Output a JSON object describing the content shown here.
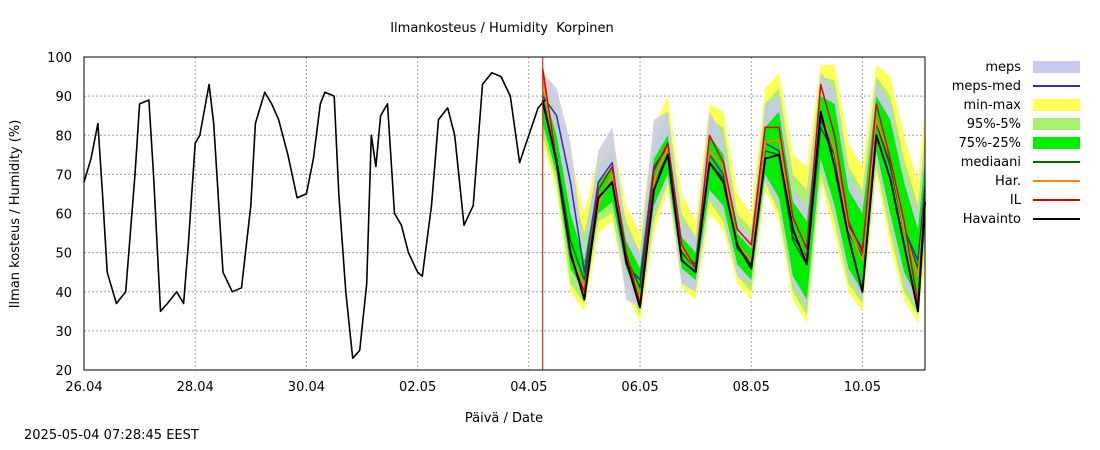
{
  "chart_data": {
    "type": "line",
    "title": "Ilmankosteus / Humidity  Korpinen",
    "xlabel": "Päivä / Date",
    "ylabel": "Ilman kosteus / Humidity (%)",
    "ylim": [
      20,
      100
    ],
    "yticks": [
      20,
      30,
      40,
      50,
      60,
      70,
      80,
      90,
      100
    ],
    "xlim": [
      "2025-04-26T00:00",
      "2025-05-11T03:00"
    ],
    "xticks": [
      "26.04",
      "28.04",
      "30.04",
      "02.05",
      "04.05",
      "06.05",
      "08.05",
      "10.05"
    ],
    "grid": true,
    "legend_position": "right",
    "analysis_time": "2025-05-04T06:00",
    "legend": [
      {
        "label": "meps",
        "kind": "band",
        "color": "#c8c8f0"
      },
      {
        "label": "meps-med",
        "kind": "line",
        "color": "#3030c0"
      },
      {
        "label": "min-max",
        "kind": "band",
        "color": "#ffff55"
      },
      {
        "label": "95%-5%",
        "kind": "band",
        "color": "#a8f070"
      },
      {
        "label": "75%-25%",
        "kind": "band",
        "color": "#00ee00"
      },
      {
        "label": "mediaani",
        "kind": "line",
        "color": "#006600"
      },
      {
        "label": "Har.",
        "kind": "line",
        "color": "#ff8800"
      },
      {
        "label": "IL",
        "kind": "line",
        "color": "#e00000"
      },
      {
        "label": "Havainto",
        "kind": "line",
        "color": "#000000"
      }
    ],
    "observed": {
      "name": "Havainto",
      "x": [
        "2025-04-26T00:00",
        "2025-04-26T03:00",
        "2025-04-26T06:00",
        "2025-04-26T08:00",
        "2025-04-26T10:00",
        "2025-04-26T14:00",
        "2025-04-26T18:00",
        "2025-04-26T22:00",
        "2025-04-27T00:00",
        "2025-04-27T04:00",
        "2025-04-27T06:00",
        "2025-04-27T09:00",
        "2025-04-27T12:00",
        "2025-04-27T16:00",
        "2025-04-27T19:00",
        "2025-04-27T21:00",
        "2025-04-28T00:00",
        "2025-04-28T02:00",
        "2025-04-28T06:00",
        "2025-04-28T08:00",
        "2025-04-28T12:00",
        "2025-04-28T16:00",
        "2025-04-28T20:00",
        "2025-04-29T00:00",
        "2025-04-29T02:00",
        "2025-04-29T06:00",
        "2025-04-29T09:00",
        "2025-04-29T12:00",
        "2025-04-29T16:00",
        "2025-04-29T20:00",
        "2025-04-30T00:00",
        "2025-04-30T03:00",
        "2025-04-30T06:00",
        "2025-04-30T08:00",
        "2025-04-30T12:00",
        "2025-04-30T14:00",
        "2025-04-30T17:00",
        "2025-04-30T20:00",
        "2025-04-30T23:00",
        "2025-05-01T02:00",
        "2025-05-01T04:00",
        "2025-05-01T06:00",
        "2025-05-01T08:00",
        "2025-05-01T11:00",
        "2025-05-01T14:00",
        "2025-05-01T17:00",
        "2025-05-01T20:00",
        "2025-05-02T00:00",
        "2025-05-02T02:00",
        "2025-05-02T06:00",
        "2025-05-02T09:00",
        "2025-05-02T13:00",
        "2025-05-02T16:00",
        "2025-05-02T20:00",
        "2025-05-03T00:00",
        "2025-05-03T04:00",
        "2025-05-03T08:00",
        "2025-05-03T12:00",
        "2025-05-03T16:00",
        "2025-05-03T20:00",
        "2025-05-04T00:00",
        "2025-05-04T04:00",
        "2025-05-04T07:00"
      ],
      "values": [
        68,
        74,
        83,
        65,
        45,
        37,
        40,
        70,
        88,
        89,
        70,
        35,
        37,
        40,
        37,
        52,
        78,
        80,
        93,
        83,
        45,
        40,
        41,
        62,
        83,
        91,
        88,
        84,
        75,
        64,
        65,
        74,
        88,
        91,
        90,
        65,
        40,
        23,
        25,
        42,
        80,
        72,
        85,
        88,
        60,
        57,
        50,
        45,
        44,
        62,
        84,
        87,
        80,
        57,
        62,
        93,
        96,
        95,
        90,
        73,
        80,
        87,
        89
      ]
    },
    "forecast_x": [
      "2025-05-04T06:00",
      "2025-05-04T12:00",
      "2025-05-04T18:00",
      "2025-05-05T00:00",
      "2025-05-05T06:00",
      "2025-05-05T12:00",
      "2025-05-05T18:00",
      "2025-05-06T00:00",
      "2025-05-06T06:00",
      "2025-05-06T12:00",
      "2025-05-06T18:00",
      "2025-05-07T00:00",
      "2025-05-07T06:00",
      "2025-05-07T12:00",
      "2025-05-07T18:00",
      "2025-05-08T00:00",
      "2025-05-08T06:00",
      "2025-05-08T12:00",
      "2025-05-08T18:00",
      "2025-05-09T00:00",
      "2025-05-09T06:00",
      "2025-05-09T12:00",
      "2025-05-09T18:00",
      "2025-05-10T00:00",
      "2025-05-10T06:00",
      "2025-05-10T12:00",
      "2025-05-10T18:00",
      "2025-05-11T00:00",
      "2025-05-11T03:00"
    ],
    "series": [
      {
        "name": "min-max",
        "kind": "band",
        "low": [
          78,
          66,
          40,
          35,
          55,
          58,
          40,
          32,
          55,
          66,
          41,
          38,
          60,
          56,
          42,
          38,
          66,
          58,
          38,
          32,
          68,
          55,
          40,
          35,
          70,
          52,
          38,
          32,
          48
        ],
        "high": [
          97,
          90,
          75,
          60,
          75,
          80,
          62,
          55,
          82,
          90,
          65,
          58,
          88,
          86,
          65,
          60,
          92,
          96,
          75,
          72,
          98,
          98,
          78,
          72,
          98,
          95,
          80,
          68,
          86
        ]
      },
      {
        "name": "95%-5%",
        "kind": "band",
        "low": [
          80,
          68,
          42,
          37,
          58,
          60,
          42,
          34,
          58,
          68,
          43,
          40,
          63,
          58,
          44,
          40,
          68,
          60,
          40,
          34,
          70,
          58,
          42,
          37,
          72,
          55,
          40,
          34,
          52
        ],
        "high": [
          95,
          86,
          68,
          55,
          72,
          76,
          58,
          50,
          78,
          86,
          60,
          54,
          84,
          82,
          60,
          56,
          88,
          92,
          70,
          66,
          95,
          94,
          72,
          66,
          95,
          90,
          74,
          62,
          80
        ]
      },
      {
        "name": "75%-25%",
        "kind": "band",
        "low": [
          83,
          70,
          46,
          40,
          60,
          63,
          46,
          38,
          62,
          70,
          46,
          43,
          66,
          62,
          47,
          43,
          70,
          64,
          44,
          38,
          74,
          62,
          46,
          40,
          76,
          60,
          45,
          38,
          56
        ],
        "high": [
          92,
          80,
          60,
          48,
          68,
          72,
          53,
          46,
          74,
          80,
          54,
          50,
          80,
          75,
          55,
          51,
          82,
          86,
          63,
          58,
          90,
          88,
          66,
          60,
          90,
          84,
          68,
          56,
          74
        ]
      },
      {
        "name": "meps",
        "kind": "band",
        "low": [
          85,
          78,
          60,
          40,
          62,
          64,
          38,
          36,
          60,
          68,
          42,
          40,
          64,
          60,
          44,
          42,
          68,
          62,
          42,
          36,
          72,
          60,
          44,
          38,
          74,
          58,
          42,
          36,
          56
        ],
        "high": [
          96,
          92,
          78,
          50,
          76,
          82,
          56,
          50,
          84,
          86,
          58,
          54,
          86,
          80,
          58,
          54,
          88,
          90,
          66,
          62,
          96,
          92,
          70,
          64,
          94,
          88,
          70,
          60,
          78
        ]
      },
      {
        "name": "meps-med",
        "kind": "line",
        "values": [
          90,
          85,
          68,
          45,
          68,
          73,
          47,
          43,
          72,
          77,
          50,
          47,
          75,
          70,
          51,
          48,
          78,
          76,
          54,
          49,
          84,
          76,
          57,
          51,
          84,
          73,
          56,
          48,
          67
        ]
      },
      {
        "name": "mediaani",
        "kind": "line",
        "values": [
          88,
          74,
          53,
          43,
          64,
          68,
          49,
          41,
          68,
          75,
          50,
          46,
          73,
          69,
          51,
          47,
          76,
          75,
          53,
          47,
          82,
          75,
          55,
          49,
          83,
          72,
          56,
          46,
          65
        ]
      },
      {
        "name": "Har.",
        "kind": "line",
        "values": [
          95,
          72,
          50,
          41,
          62,
          70,
          50,
          38,
          68,
          77,
          51,
          46,
          76,
          72,
          52,
          48,
          78,
          79,
          56,
          48,
          86,
          76,
          56,
          48,
          84,
          74,
          56,
          44,
          64
        ]
      },
      {
        "name": "IL",
        "kind": "line",
        "values": [
          97,
          73,
          49,
          40,
          66,
          72,
          50,
          37,
          71,
          78,
          52,
          46,
          80,
          73,
          56,
          52,
          82,
          82,
          59,
          51,
          93,
          80,
          58,
          50,
          88,
          74,
          58,
          37,
          66
        ]
      },
      {
        "name": "Havainto (ennuste)",
        "kind": "line",
        "values": [
          89,
          73,
          50,
          38,
          64,
          68,
          48,
          36,
          66,
          75,
          48,
          45,
          73,
          68,
          52,
          46,
          74,
          75,
          56,
          47,
          86,
          72,
          54,
          40,
          80,
          69,
          52,
          35,
          63
        ]
      }
    ]
  },
  "footer": {
    "timestamp": "2025-05-04  07:28:45 EEST"
  }
}
